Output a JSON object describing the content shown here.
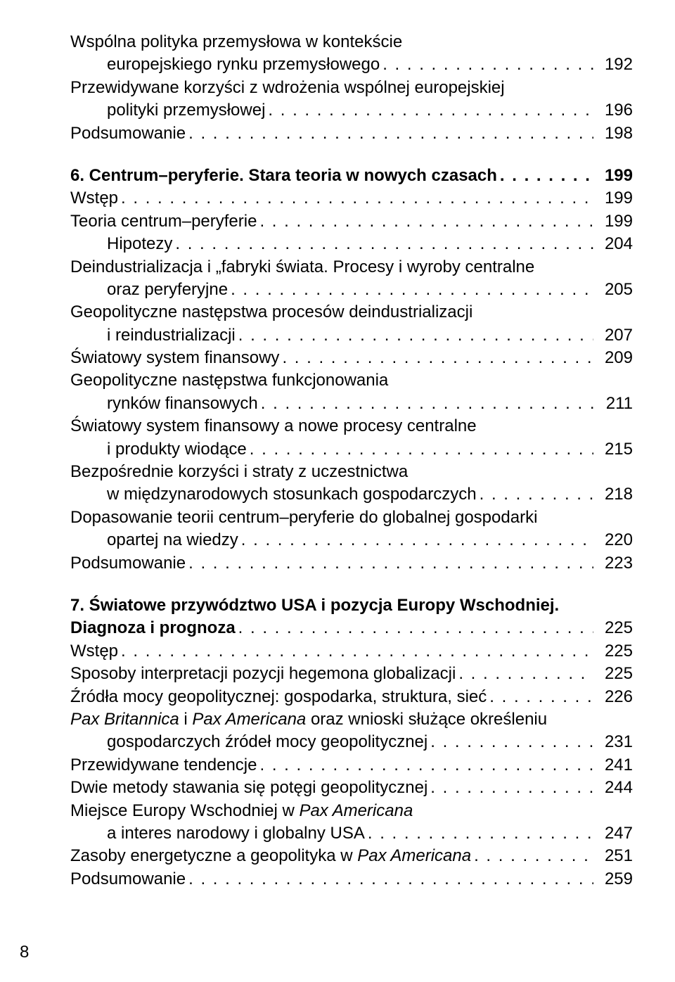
{
  "page_number": "8",
  "leader_glyph": ". ",
  "entries": [
    {
      "lines": [
        {
          "text": "Wspólna polityka przemysłowa w kontekście",
          "indent": 0
        }
      ],
      "last": {
        "text": "europejskiego rynku przemysłowego",
        "indent": 1
      },
      "page": "192",
      "bold": false
    },
    {
      "lines": [
        {
          "text": "Przewidywane korzyści z wdrożenia wspólnej europejskiej",
          "indent": 0
        }
      ],
      "last": {
        "text": "polityki przemysłowej",
        "indent": 1
      },
      "page": "196",
      "bold": false
    },
    {
      "lines": [],
      "last": {
        "text": "Podsumowanie",
        "indent": 0
      },
      "page": "198",
      "bold": false
    },
    {
      "gap": true
    },
    {
      "lines": [],
      "last": {
        "text": "6. Centrum–peryferie. Stara teoria w nowych czasach",
        "indent": 0
      },
      "page": "199",
      "bold": true
    },
    {
      "lines": [],
      "last": {
        "text": "Wstęp",
        "indent": 0
      },
      "page": "199",
      "bold": false
    },
    {
      "lines": [],
      "last": {
        "text": "Teoria centrum–peryferie",
        "indent": 0
      },
      "page": "199",
      "bold": false
    },
    {
      "lines": [],
      "last": {
        "text": "Hipotezy",
        "indent": 1
      },
      "page": "204",
      "bold": false
    },
    {
      "lines": [
        {
          "text": "Deindustrializacja i „fabryki świata. Procesy i wyroby centralne",
          "indent": 0
        }
      ],
      "last": {
        "text": "oraz peryferyjne",
        "indent": 1
      },
      "page": "205",
      "bold": false
    },
    {
      "lines": [
        {
          "text": "Geopolityczne następstwa procesów deindustrializacji",
          "indent": 0
        }
      ],
      "last": {
        "text": "i reindustrializacji",
        "indent": 1
      },
      "page": "207",
      "bold": false
    },
    {
      "lines": [],
      "last": {
        "text": "Światowy system finansowy",
        "indent": 0
      },
      "page": "209",
      "bold": false
    },
    {
      "lines": [
        {
          "text": "Geopolityczne następstwa funkcjonowania",
          "indent": 0
        }
      ],
      "last": {
        "text": "rynków finansowych",
        "indent": 1
      },
      "page": "211",
      "bold": false
    },
    {
      "lines": [
        {
          "text": "Światowy system finansowy a nowe procesy centralne",
          "indent": 0
        }
      ],
      "last": {
        "text": "i produkty wiodące",
        "indent": 1
      },
      "page": "215",
      "bold": false
    },
    {
      "lines": [
        {
          "text": "Bezpośrednie korzyści i straty z uczestnictwa",
          "indent": 0
        }
      ],
      "last": {
        "text": "w międzynarodowych stosunkach gospodarczych",
        "indent": 1
      },
      "page": "218",
      "bold": false
    },
    {
      "lines": [
        {
          "text": "Dopasowanie teorii centrum–peryferie do globalnej gospodarki",
          "indent": 0
        }
      ],
      "last": {
        "text": "opartej na wiedzy",
        "indent": 1
      },
      "page": "220",
      "bold": false
    },
    {
      "lines": [],
      "last": {
        "text": "Podsumowanie",
        "indent": 0
      },
      "page": "223",
      "bold": false
    },
    {
      "gap": true
    },
    {
      "lines": [
        {
          "text": "7. Światowe przywództwo USA i pozycja Europy Wschodniej.",
          "indent": 0,
          "bold": true
        }
      ],
      "last": {
        "text": "Diagnoza i prognoza",
        "indent": 0
      },
      "page": "225",
      "bold": false,
      "bold_label": true
    },
    {
      "lines": [],
      "last": {
        "text": "Wstęp",
        "indent": 0
      },
      "page": "225",
      "bold": false
    },
    {
      "lines": [],
      "last": {
        "text": "Sposoby interpretacji pozycji hegemona globalizacji",
        "indent": 0
      },
      "page": "225",
      "bold": false
    },
    {
      "lines": [],
      "last": {
        "text": "Źródła mocy geopolitycznej: gospodarka, struktura, sieć",
        "indent": 0
      },
      "page": "226",
      "bold": false
    },
    {
      "lines": [
        {
          "html": "<em class=\"it\">Pax Britannica</em> i <em class=\"it\">Pax Americana</em> oraz wnioski służące określeniu",
          "indent": 0
        }
      ],
      "last": {
        "text": "gospodarczych źródeł mocy geopolitycznej",
        "indent": 1
      },
      "page": "231",
      "bold": false
    },
    {
      "lines": [],
      "last": {
        "text": "Przewidywane tendencje",
        "indent": 0
      },
      "page": "241",
      "bold": false
    },
    {
      "lines": [],
      "last": {
        "text": "Dwie metody stawania się potęgi geopolitycznej",
        "indent": 0
      },
      "page": "244",
      "bold": false
    },
    {
      "lines": [
        {
          "html": "Miejsce Europy Wschodniej w <em class=\"it\">Pax Americana</em>",
          "indent": 0
        }
      ],
      "last": {
        "text": "a interes narodowy i globalny USA",
        "indent": 1
      },
      "page": "247",
      "bold": false
    },
    {
      "lines": [],
      "last": {
        "html": "Zasoby energetyczne a geopolityka w <em class=\"it\">Pax Americana</em>",
        "indent": 0
      },
      "page": "251",
      "bold": false
    },
    {
      "lines": [],
      "last": {
        "text": "Podsumowanie",
        "indent": 0
      },
      "page": "259",
      "bold": false
    }
  ]
}
